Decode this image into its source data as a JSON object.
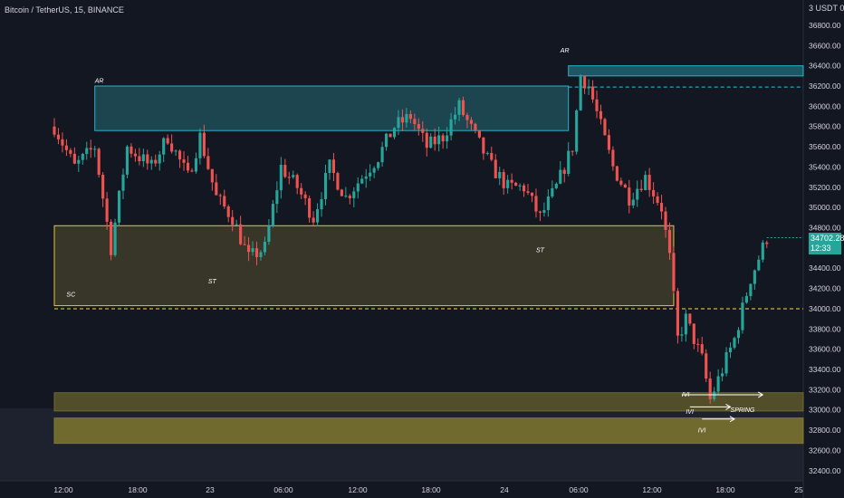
{
  "header": {
    "title": "Bitcoin / TetherUS, 15, BINANCE",
    "price_axis_header": "3 USDT 0"
  },
  "last_price": {
    "value": "34702.28",
    "countdown": "12:33"
  },
  "colors": {
    "background": "#131722",
    "up": "#26a69a",
    "down": "#ef5350",
    "accumulation_box": "#fdd835",
    "resistance_box": "#26c6da",
    "text": "#d1d4dc"
  },
  "chart_data": {
    "type": "candlestick",
    "symbol": "Bitcoin / TetherUS",
    "interval": "15",
    "exchange": "BINANCE",
    "ylim": [
      32300,
      37050
    ],
    "y_ticks": [
      32400,
      32600,
      32800,
      33000,
      33200,
      33400,
      33600,
      33800,
      34000,
      34200,
      34400,
      34600,
      34800,
      35000,
      35200,
      35400,
      35600,
      35800,
      36000,
      36200,
      36400,
      36600,
      36800
    ],
    "x_ticks": [
      "12:00",
      "18:00",
      "23",
      "06:00",
      "12:00",
      "18:00",
      "24",
      "06:00",
      "12:00",
      "18:00",
      "25"
    ],
    "close_path": [
      {
        "t": 0,
        "c": 35800
      },
      {
        "t": 5,
        "c": 35400
      },
      {
        "t": 10,
        "c": 35600
      },
      {
        "t": 14,
        "c": 34600
      },
      {
        "t": 18,
        "c": 35600
      },
      {
        "t": 24,
        "c": 35400
      },
      {
        "t": 28,
        "c": 35700
      },
      {
        "t": 33,
        "c": 35300
      },
      {
        "t": 36,
        "c": 35700
      },
      {
        "t": 40,
        "c": 35100
      },
      {
        "t": 44,
        "c": 34900
      },
      {
        "t": 48,
        "c": 34500
      },
      {
        "t": 52,
        "c": 34600
      },
      {
        "t": 56,
        "c": 35400
      },
      {
        "t": 60,
        "c": 35200
      },
      {
        "t": 64,
        "c": 34900
      },
      {
        "t": 68,
        "c": 35400
      },
      {
        "t": 72,
        "c": 35100
      },
      {
        "t": 76,
        "c": 35300
      },
      {
        "t": 80,
        "c": 35500
      },
      {
        "t": 84,
        "c": 35800
      },
      {
        "t": 88,
        "c": 35900
      },
      {
        "t": 92,
        "c": 35600
      },
      {
        "t": 96,
        "c": 35700
      },
      {
        "t": 100,
        "c": 36000
      },
      {
        "t": 104,
        "c": 35700
      },
      {
        "t": 108,
        "c": 35400
      },
      {
        "t": 112,
        "c": 35200
      },
      {
        "t": 116,
        "c": 35200
      },
      {
        "t": 120,
        "c": 34900
      },
      {
        "t": 124,
        "c": 35200
      },
      {
        "t": 128,
        "c": 35600
      },
      {
        "t": 130,
        "c": 36300
      },
      {
        "t": 132,
        "c": 36200
      },
      {
        "t": 135,
        "c": 35800
      },
      {
        "t": 138,
        "c": 35400
      },
      {
        "t": 142,
        "c": 35100
      },
      {
        "t": 146,
        "c": 35300
      },
      {
        "t": 150,
        "c": 35000
      },
      {
        "t": 152,
        "c": 34500
      },
      {
        "t": 154,
        "c": 33700
      },
      {
        "t": 156,
        "c": 33900
      },
      {
        "t": 160,
        "c": 33500
      },
      {
        "t": 162,
        "c": 33100
      },
      {
        "t": 164,
        "c": 33300
      },
      {
        "t": 168,
        "c": 33700
      },
      {
        "t": 172,
        "c": 34300
      },
      {
        "t": 176,
        "c": 34700
      }
    ],
    "zones": [
      {
        "name": "upper-resistance-zone",
        "y_top": 36400,
        "y_bottom": 36300,
        "t_start": 127,
        "t_end": 185
      },
      {
        "name": "ar-resistance-zone",
        "y_top": 36200,
        "y_bottom": 35760,
        "t_start": 10,
        "t_end": 127
      },
      {
        "name": "accumulation-range",
        "y_top": 34820,
        "y_bottom": 34030,
        "t_start": 0,
        "t_end": 153
      },
      {
        "name": "demand-zone-upper",
        "y_top": 33170,
        "y_bottom": 32990,
        "t_start": 0,
        "t_end": 185
      },
      {
        "name": "demand-zone-lower",
        "y_top": 32920,
        "y_bottom": 32670,
        "t_start": 0,
        "t_end": 185
      }
    ],
    "levels": [
      {
        "name": "sc-low-level",
        "y": 34000,
        "style": "dashed"
      },
      {
        "name": "ar-high-level",
        "y": 36190,
        "style": "dashed"
      }
    ],
    "annotations": [
      {
        "text": "AR",
        "t": 10,
        "y": 36230
      },
      {
        "text": "AR",
        "t": 125,
        "y": 36530
      },
      {
        "text": "SC",
        "t": 3,
        "y": 34120
      },
      {
        "text": "ST",
        "t": 38,
        "y": 34250
      },
      {
        "text": "ST",
        "t": 119,
        "y": 34560
      },
      {
        "text": "IVI",
        "t": 155,
        "y": 33130
      },
      {
        "text": "IVI",
        "t": 156,
        "y": 32960
      },
      {
        "text": "IVI",
        "t": 159,
        "y": 32780
      },
      {
        "text": "SPRING",
        "t": 167,
        "y": 32980
      }
    ],
    "arrows": [
      {
        "name": "ivi-arrow-1",
        "t_start": 155,
        "t_end": 175,
        "y": 33150
      },
      {
        "name": "ivi-arrow-2",
        "t_start": 157,
        "t_end": 167,
        "y": 33030
      },
      {
        "name": "ivi-arrow-3",
        "t_start": 160,
        "t_end": 168,
        "y": 32910
      }
    ]
  }
}
